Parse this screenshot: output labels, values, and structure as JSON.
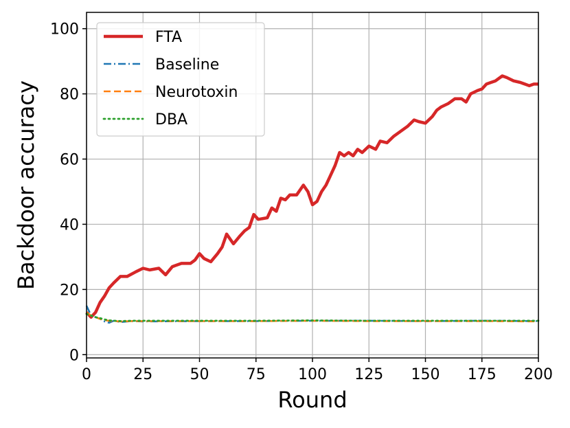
{
  "chart_data": {
    "type": "line",
    "xlabel": "Round",
    "ylabel": "Backdoor accuracy",
    "xlim": [
      0,
      200
    ],
    "ylim": [
      -1,
      105
    ],
    "xticks": [
      0,
      25,
      50,
      75,
      100,
      125,
      150,
      175,
      200
    ],
    "yticks": [
      0,
      20,
      40,
      60,
      80,
      100
    ],
    "grid": true,
    "legend_position": "top-left",
    "series": [
      {
        "name": "FTA",
        "color": "#d62728",
        "style": "solid",
        "points": [
          [
            0,
            13
          ],
          [
            2,
            11.5
          ],
          [
            4,
            13
          ],
          [
            6,
            16
          ],
          [
            8,
            18
          ],
          [
            10,
            20.5
          ],
          [
            12,
            22
          ],
          [
            15,
            24
          ],
          [
            18,
            24
          ],
          [
            22,
            25.5
          ],
          [
            25,
            26.5
          ],
          [
            28,
            26
          ],
          [
            32,
            26.5
          ],
          [
            35,
            24.5
          ],
          [
            38,
            27
          ],
          [
            42,
            28
          ],
          [
            46,
            28
          ],
          [
            48,
            29
          ],
          [
            50,
            31
          ],
          [
            52,
            29.5
          ],
          [
            55,
            28.5
          ],
          [
            58,
            31
          ],
          [
            60,
            33
          ],
          [
            62,
            37
          ],
          [
            65,
            34
          ],
          [
            68,
            36.5
          ],
          [
            70,
            38
          ],
          [
            72,
            39
          ],
          [
            74,
            43
          ],
          [
            76,
            41.5
          ],
          [
            80,
            42
          ],
          [
            82,
            45
          ],
          [
            84,
            44
          ],
          [
            86,
            48
          ],
          [
            88,
            47.5
          ],
          [
            90,
            49
          ],
          [
            93,
            49
          ],
          [
            96,
            52
          ],
          [
            98,
            50
          ],
          [
            100,
            46
          ],
          [
            102,
            47
          ],
          [
            104,
            50
          ],
          [
            106,
            52
          ],
          [
            108,
            55
          ],
          [
            110,
            58
          ],
          [
            112,
            62
          ],
          [
            114,
            61
          ],
          [
            116,
            62
          ],
          [
            118,
            61
          ],
          [
            120,
            63
          ],
          [
            122,
            62
          ],
          [
            125,
            64
          ],
          [
            128,
            63
          ],
          [
            130,
            65.5
          ],
          [
            133,
            65
          ],
          [
            136,
            67
          ],
          [
            139,
            68.5
          ],
          [
            142,
            70
          ],
          [
            145,
            72
          ],
          [
            147,
            71.5
          ],
          [
            150,
            71
          ],
          [
            153,
            73
          ],
          [
            155,
            75
          ],
          [
            157,
            76
          ],
          [
            160,
            77
          ],
          [
            163,
            78.5
          ],
          [
            166,
            78.5
          ],
          [
            168,
            77.5
          ],
          [
            170,
            80
          ],
          [
            173,
            81
          ],
          [
            175,
            81.5
          ],
          [
            177,
            83
          ],
          [
            179,
            83.5
          ],
          [
            181,
            84
          ],
          [
            184,
            85.5
          ],
          [
            186,
            85
          ],
          [
            189,
            84
          ],
          [
            192,
            83.5
          ],
          [
            194,
            83
          ],
          [
            196,
            82.5
          ],
          [
            198,
            83
          ],
          [
            200,
            83
          ]
        ]
      },
      {
        "name": "Baseline",
        "color": "#1f77b4",
        "style": "dashdot",
        "points": [
          [
            0,
            15
          ],
          [
            2,
            12
          ],
          [
            4,
            11.5
          ],
          [
            6,
            11
          ],
          [
            8,
            10.2
          ],
          [
            10,
            9.8
          ],
          [
            12,
            10.4
          ],
          [
            15,
            10
          ],
          [
            20,
            10.3
          ],
          [
            25,
            10.2
          ],
          [
            50,
            10.3
          ],
          [
            75,
            10.3
          ],
          [
            100,
            10.4
          ],
          [
            125,
            10.4
          ],
          [
            150,
            10.3
          ],
          [
            175,
            10.4
          ],
          [
            200,
            10.3
          ]
        ]
      },
      {
        "name": "Neurotoxin",
        "color": "#ff7f0e",
        "style": "dashed",
        "points": [
          [
            0,
            13
          ],
          [
            2,
            12
          ],
          [
            4,
            11.5
          ],
          [
            6,
            11
          ],
          [
            8,
            10.6
          ],
          [
            10,
            10.4
          ],
          [
            15,
            10.2
          ],
          [
            20,
            10.3
          ],
          [
            25,
            10.3
          ],
          [
            50,
            10.3
          ],
          [
            75,
            10.3
          ],
          [
            100,
            10.4
          ],
          [
            125,
            10.3
          ],
          [
            150,
            10.3
          ],
          [
            175,
            10.3
          ],
          [
            200,
            10.2
          ]
        ]
      },
      {
        "name": "DBA",
        "color": "#2ca02c",
        "style": "dotted",
        "points": [
          [
            0,
            12.5
          ],
          [
            2,
            12
          ],
          [
            4,
            11.5
          ],
          [
            6,
            11.2
          ],
          [
            8,
            10.8
          ],
          [
            10,
            10.5
          ],
          [
            15,
            10.3
          ],
          [
            20,
            10.4
          ],
          [
            25,
            10.4
          ],
          [
            50,
            10.4
          ],
          [
            75,
            10.4
          ],
          [
            100,
            10.5
          ],
          [
            125,
            10.4
          ],
          [
            150,
            10.4
          ],
          [
            175,
            10.4
          ],
          [
            200,
            10.4
          ]
        ]
      }
    ]
  }
}
